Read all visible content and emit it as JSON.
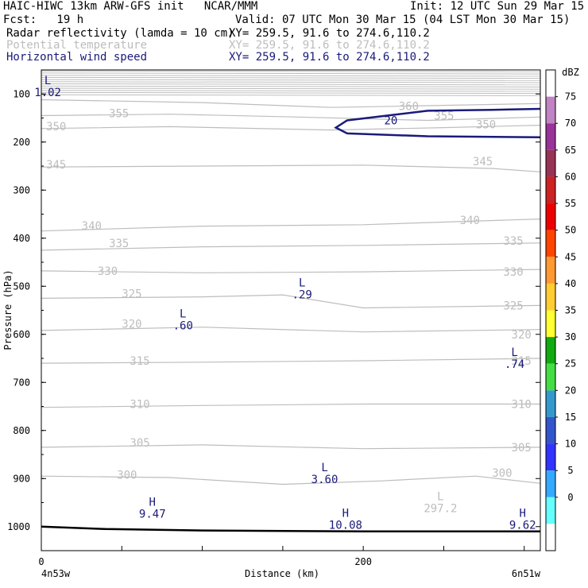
{
  "header": {
    "line1_left": "HAIC-HIWC 13km ARW-GFS init   NCAR/MMM",
    "line1_right": "Init: 12 UTC Sun 29 Mar 15",
    "line2_left": "Fcst:   19 h",
    "line2_right": "Valid: 07 UTC Mon 30 Mar 15 (04 LST Mon 30 Mar 15)",
    "fields": [
      {
        "name": "Radar reflectivity (lamda = 10 cm)",
        "xy": "XY= 259.5, 91.6 to 274.6,110.2",
        "color": "#000000"
      },
      {
        "name": "Potential temperature",
        "xy": "XY= 259.5, 91.6 to 274.6,110.2",
        "color": "#bdbdbd"
      },
      {
        "name": "Horizontal wind speed",
        "xy": "XY= 259.5, 91.6 to 274.6,110.2",
        "color": "#1a1a7a"
      }
    ]
  },
  "chart_data": {
    "type": "cross-section contour",
    "xlabel": "Distance (km)",
    "ylabel": "Pressure (hPa)",
    "xlim": [
      0,
      310
    ],
    "ylim": [
      50,
      1050
    ],
    "x_ticks": [
      0,
      200
    ],
    "y_ticks": [
      100,
      200,
      300,
      400,
      500,
      600,
      700,
      800,
      900,
      1000
    ],
    "x_endpoints": {
      "left": "4n53w",
      "right": "6n51w"
    },
    "theta_contours": [
      {
        "value": 360,
        "pts": [
          [
            0,
            112
          ],
          [
            100,
            118
          ],
          [
            180,
            128
          ],
          [
            230,
            125
          ],
          [
            310,
            120
          ]
        ],
        "labels": [
          [
            222,
            125
          ]
        ]
      },
      {
        "value": 355,
        "pts": [
          [
            0,
            145
          ],
          [
            80,
            142
          ],
          [
            160,
            148
          ],
          [
            240,
            155
          ],
          [
            310,
            148
          ]
        ],
        "labels": [
          [
            42,
            140
          ],
          [
            244,
            145
          ]
        ]
      },
      {
        "value": 350,
        "pts": [
          [
            0,
            172
          ],
          [
            80,
            168
          ],
          [
            180,
            175
          ],
          [
            250,
            170
          ],
          [
            310,
            165
          ]
        ],
        "labels": [
          [
            3,
            167
          ],
          [
            270,
            163
          ]
        ]
      },
      {
        "value": 345,
        "pts": [
          [
            0,
            252
          ],
          [
            100,
            250
          ],
          [
            200,
            248
          ],
          [
            280,
            255
          ],
          [
            310,
            262
          ]
        ],
        "labels": [
          [
            3,
            247
          ],
          [
            268,
            240
          ]
        ]
      },
      {
        "value": 340,
        "pts": [
          [
            0,
            385
          ],
          [
            100,
            375
          ],
          [
            200,
            372
          ],
          [
            310,
            360
          ]
        ],
        "labels": [
          [
            25,
            374
          ],
          [
            260,
            362
          ]
        ]
      },
      {
        "value": 335,
        "pts": [
          [
            0,
            425
          ],
          [
            100,
            418
          ],
          [
            200,
            415
          ],
          [
            310,
            410
          ]
        ],
        "labels": [
          [
            42,
            410
          ],
          [
            287,
            405
          ]
        ]
      },
      {
        "value": 330,
        "pts": [
          [
            0,
            468
          ],
          [
            100,
            472
          ],
          [
            200,
            470
          ],
          [
            310,
            465
          ]
        ],
        "labels": [
          [
            35,
            468
          ],
          [
            287,
            470
          ]
        ]
      },
      {
        "value": 325,
        "pts": [
          [
            0,
            525
          ],
          [
            100,
            522
          ],
          [
            150,
            518
          ],
          [
            200,
            545
          ],
          [
            310,
            540
          ]
        ],
        "labels": [
          [
            50,
            515
          ],
          [
            287,
            540
          ]
        ]
      },
      {
        "value": 320,
        "pts": [
          [
            0,
            592
          ],
          [
            100,
            585
          ],
          [
            200,
            595
          ],
          [
            310,
            590
          ]
        ],
        "labels": [
          [
            50,
            578
          ],
          [
            292,
            600
          ]
        ]
      },
      {
        "value": 315,
        "pts": [
          [
            0,
            660
          ],
          [
            100,
            658
          ],
          [
            200,
            655
          ],
          [
            310,
            650
          ]
        ],
        "labels": [
          [
            55,
            655
          ],
          [
            292,
            655
          ]
        ]
      },
      {
        "value": 310,
        "pts": [
          [
            0,
            752
          ],
          [
            100,
            748
          ],
          [
            200,
            745
          ],
          [
            310,
            745
          ]
        ],
        "labels": [
          [
            55,
            745
          ],
          [
            292,
            745
          ]
        ]
      },
      {
        "value": 305,
        "pts": [
          [
            0,
            835
          ],
          [
            100,
            830
          ],
          [
            200,
            838
          ],
          [
            310,
            835
          ]
        ],
        "labels": [
          [
            55,
            825
          ],
          [
            292,
            835
          ]
        ]
      },
      {
        "value": 300,
        "pts": [
          [
            0,
            895
          ],
          [
            80,
            898
          ],
          [
            150,
            912
          ],
          [
            210,
            905
          ],
          [
            270,
            895
          ],
          [
            310,
            910
          ]
        ],
        "labels": [
          [
            47,
            892
          ],
          [
            280,
            888
          ]
        ]
      }
    ],
    "wind_contours": [
      {
        "value": 20,
        "pts": [
          [
            310,
            131
          ],
          [
            280,
            133
          ],
          [
            240,
            135
          ],
          [
            190,
            155
          ],
          [
            183,
            170
          ],
          [
            190,
            182
          ],
          [
            240,
            188
          ],
          [
            310,
            190
          ]
        ],
        "labels": [
          [
            213,
            155
          ]
        ]
      }
    ],
    "ground_line": [
      [
        0,
        1000
      ],
      [
        40,
        1005
      ],
      [
        100,
        1008
      ],
      [
        200,
        1010
      ],
      [
        310,
        1010
      ]
    ],
    "extrema": [
      {
        "kind": "L",
        "value": "1.02",
        "field": "wind",
        "x": 4,
        "y": 80
      },
      {
        "kind": "L",
        "value": ".29",
        "field": "wind",
        "x": 162,
        "y": 500
      },
      {
        "kind": "L",
        "value": ".60",
        "field": "wind",
        "x": 88,
        "y": 565
      },
      {
        "kind": "L",
        "value": ".74",
        "field": "wind",
        "x": 294,
        "y": 645
      },
      {
        "kind": "L",
        "value": "3.60",
        "field": "wind",
        "x": 176,
        "y": 885
      },
      {
        "kind": "H",
        "value": "9.47",
        "field": "wind",
        "x": 69,
        "y": 957
      },
      {
        "kind": "H",
        "value": "10.08",
        "field": "wind",
        "x": 189,
        "y": 980
      },
      {
        "kind": "H",
        "value": "9.62",
        "field": "wind",
        "x": 299,
        "y": 980
      },
      {
        "kind": "L",
        "value": "297.2",
        "field": "theta",
        "x": 248,
        "y": 945
      }
    ],
    "colorbar": {
      "unit": "dBZ",
      "levels": [
        "75",
        "70",
        "65",
        "60",
        "55",
        "50",
        "45",
        "40",
        "35",
        "30",
        "25",
        "20",
        "15",
        "10",
        "5",
        "0"
      ],
      "colors": [
        "#ffffff",
        "#c083c3",
        "#993399",
        "#993355",
        "#cc2222",
        "#ee0000",
        "#ff4400",
        "#ff9933",
        "#ffcc33",
        "#ffff33",
        "#11aa11",
        "#44dd44",
        "#3399cc",
        "#3355cc",
        "#3333ff",
        "#33aaff",
        "#66ffff",
        "#ffffff"
      ]
    },
    "colors": {
      "theta": "#bdbdbd",
      "wind": "#1a1a7a",
      "ground": "#000000",
      "top_band": "#bdbdbd"
    }
  }
}
